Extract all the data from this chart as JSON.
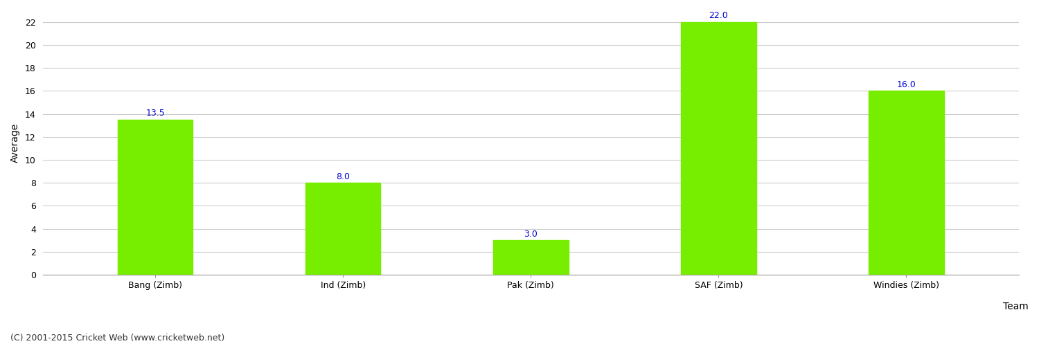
{
  "categories": [
    "Bang (Zimb)",
    "Ind (Zimb)",
    "Pak (Zimb)",
    "SAF (Zimb)",
    "Windies (Zimb)"
  ],
  "values": [
    13.5,
    8.0,
    3.0,
    22.0,
    16.0
  ],
  "bar_color": "#77ee00",
  "bar_edgecolor": "#77ee00",
  "xlabel": "Team",
  "ylabel": "Average",
  "ylim": [
    0,
    23
  ],
  "yticks": [
    0,
    2,
    4,
    6,
    8,
    10,
    12,
    14,
    16,
    18,
    20,
    22
  ],
  "label_color": "#0000cc",
  "label_fontsize": 9,
  "axis_label_fontsize": 10,
  "tick_fontsize": 9,
  "background_color": "#ffffff",
  "grid_color": "#cccccc",
  "footer_text": "(C) 2001-2015 Cricket Web (www.cricketweb.net)",
  "footer_fontsize": 9,
  "footer_color": "#333333"
}
